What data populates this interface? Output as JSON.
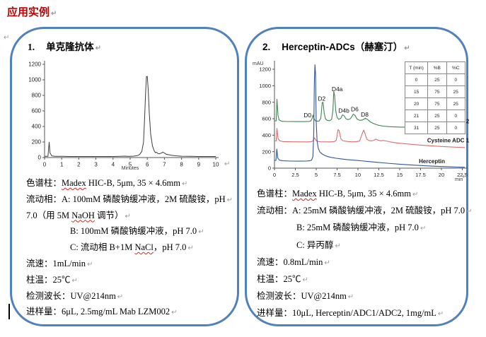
{
  "page": {
    "title": "应用实例",
    "paragraph_mark": "↵",
    "stray_mark": ".,"
  },
  "panel1": {
    "number": "1.",
    "heading": "单克隆抗体",
    "conditions": [
      {
        "indent": 0,
        "parts": [
          {
            "text": "色谱柱："
          },
          {
            "text": "Madex",
            "wavy": true
          },
          {
            "text": " HIC-B, 5μm, 35 × 4.6mm"
          }
        ]
      },
      {
        "indent": 0,
        "parts": [
          {
            "text": "流动相：A: 100mM 磷酸钠缓冲液，2M 硫酸铵，pH"
          }
        ]
      },
      {
        "indent": 0,
        "parts": [
          {
            "text": "7.0（用 5M "
          },
          {
            "text": "NaOH",
            "wavy": true
          },
          {
            "text": " 调节）"
          }
        ]
      },
      {
        "indent": 62,
        "parts": [
          {
            "text": "B: 100mM 磷酸钠缓冲液，pH 7.0"
          }
        ]
      },
      {
        "indent": 62,
        "parts": [
          {
            "text": "C: 流动相 B+1M "
          },
          {
            "text": "NaCl",
            "wavy": true
          },
          {
            "text": "，pH 7.0"
          }
        ]
      },
      {
        "indent": 0,
        "parts": [
          {
            "text": "流速：1mL/min"
          }
        ]
      },
      {
        "indent": 0,
        "parts": [
          {
            "text": "柱温：25℃"
          }
        ]
      },
      {
        "indent": 0,
        "parts": [
          {
            "text": "检测波长：UV@214nm"
          }
        ]
      },
      {
        "indent": 0,
        "parts": [
          {
            "text": "进样量：6μL, 2.5mg/mL Mab LZM002"
          }
        ]
      }
    ]
  },
  "panel2": {
    "number": "2.",
    "heading": "Herceptin-ADCs（赫塞汀）",
    "conditions": [
      {
        "indent": 0,
        "parts": [
          {
            "text": "色谱柱："
          },
          {
            "text": "Madex",
            "wavy": true
          },
          {
            "text": " HIC-B, 5μm, 35 × 4.6mm"
          }
        ]
      },
      {
        "indent": 0,
        "parts": [
          {
            "text": "流动相：A: 25mM 磷酸钠缓冲液，2M 硫酸铵，pH 7.0"
          }
        ]
      },
      {
        "indent": 56,
        "parts": [
          {
            "text": "B: 25mM 磷酸钠缓冲液，pH 7.0"
          }
        ]
      },
      {
        "indent": 56,
        "parts": [
          {
            "text": "C: 异丙醇"
          }
        ]
      },
      {
        "indent": 0,
        "parts": [
          {
            "text": "流速：0.8mL/min"
          }
        ]
      },
      {
        "indent": 0,
        "parts": [
          {
            "text": "柱温：25℃"
          }
        ]
      },
      {
        "indent": 0,
        "parts": [
          {
            "text": "检测波长：UV@214nm"
          }
        ]
      },
      {
        "indent": 0,
        "parts": [
          {
            "text": "进样量：10μL, Herceptin/ADC1/ADC2, 1mg/mL"
          }
        ]
      }
    ]
  },
  "chart_data": [
    {
      "type": "line",
      "name": "mab-chromatogram",
      "title": "",
      "xlabel": "Minutes",
      "ylabel": "",
      "xlim": [
        0,
        10
      ],
      "ylim": [
        0,
        1200
      ],
      "xticks": [
        0,
        1,
        2,
        3,
        4,
        5,
        6,
        7,
        8,
        9,
        10
      ],
      "yticks": [
        0,
        200,
        400,
        600,
        800,
        1000,
        1200
      ],
      "series": [
        {
          "name": "Mab LZM002",
          "color": "#3d3d3d",
          "points": [
            [
              0,
              16
            ],
            [
              0.2,
              16
            ],
            [
              0.27,
              198
            ],
            [
              0.32,
              60
            ],
            [
              0.42,
              22
            ],
            [
              0.6,
              16
            ],
            [
              1,
              15
            ],
            [
              1.5,
              14
            ],
            [
              2,
              14
            ],
            [
              2.5,
              14
            ],
            [
              3,
              14
            ],
            [
              3.5,
              14
            ],
            [
              4,
              14
            ],
            [
              4.4,
              15
            ],
            [
              4.72,
              18
            ],
            [
              4.78,
              15
            ],
            [
              5,
              16
            ],
            [
              5.2,
              18
            ],
            [
              5.4,
              24
            ],
            [
              5.55,
              38
            ],
            [
              5.68,
              80
            ],
            [
              5.78,
              200
            ],
            [
              5.84,
              480
            ],
            [
              5.9,
              830
            ],
            [
              5.95,
              1040
            ],
            [
              6.0,
              1045
            ],
            [
              6.05,
              890
            ],
            [
              6.12,
              560
            ],
            [
              6.2,
              300
            ],
            [
              6.3,
              150
            ],
            [
              6.4,
              88
            ],
            [
              6.48,
              62
            ],
            [
              6.55,
              68
            ],
            [
              6.62,
              52
            ],
            [
              6.72,
              48
            ],
            [
              6.82,
              58
            ],
            [
              6.92,
              68
            ],
            [
              7.0,
              58
            ],
            [
              7.1,
              44
            ],
            [
              7.25,
              36
            ],
            [
              7.45,
              28
            ],
            [
              7.7,
              22
            ],
            [
              8,
              17
            ],
            [
              8.5,
              15
            ],
            [
              9,
              14
            ],
            [
              9.5,
              14
            ],
            [
              10,
              14
            ]
          ]
        }
      ],
      "peak_labels": []
    },
    {
      "type": "line",
      "name": "herceptin-adc-chromatogram",
      "title": "",
      "xlabel": "min",
      "ylabel": "mAU",
      "xlim": [
        0,
        22.8
      ],
      "ylim": [
        0,
        1260
      ],
      "xticks": [
        0,
        2.5,
        5,
        7.5,
        10,
        12.5,
        15,
        17.5,
        20,
        22.5
      ],
      "yticks": [
        0,
        200,
        400,
        600,
        800,
        1000,
        1200
      ],
      "series": [
        {
          "name": "Cysteine ADC 2",
          "color": "#3f8653",
          "label_pos": [
            18.3,
            545
          ],
          "points": [
            [
              0,
              572
            ],
            [
              0.2,
              574
            ],
            [
              0.3,
              835
            ],
            [
              0.42,
              640
            ],
            [
              0.55,
              585
            ],
            [
              0.9,
              568
            ],
            [
              1.5,
              566
            ],
            [
              2.5,
              565
            ],
            [
              3.5,
              565
            ],
            [
              4.1,
              566
            ],
            [
              4.35,
              572
            ],
            [
              4.5,
              600
            ],
            [
              4.62,
              645
            ],
            [
              4.75,
              600
            ],
            [
              4.9,
              575
            ],
            [
              5.1,
              570
            ],
            [
              5.35,
              572
            ],
            [
              5.55,
              605
            ],
            [
              5.72,
              795
            ],
            [
              5.82,
              800
            ],
            [
              5.95,
              670
            ],
            [
              6.1,
              600
            ],
            [
              6.3,
              580
            ],
            [
              6.6,
              575
            ],
            [
              6.85,
              592
            ],
            [
              7.0,
              700
            ],
            [
              7.1,
              928
            ],
            [
              7.2,
              890
            ],
            [
              7.35,
              690
            ],
            [
              7.5,
              615
            ],
            [
              7.7,
              592
            ],
            [
              7.95,
              605
            ],
            [
              8.15,
              648
            ],
            [
              8.35,
              635
            ],
            [
              8.55,
              600
            ],
            [
              8.8,
              588
            ],
            [
              9.1,
              600
            ],
            [
              9.45,
              655
            ],
            [
              9.65,
              640
            ],
            [
              9.9,
              595
            ],
            [
              10.2,
              580
            ],
            [
              10.55,
              585
            ],
            [
              10.9,
              605
            ],
            [
              11.15,
              590
            ],
            [
              11.5,
              560
            ],
            [
              11.9,
              540
            ],
            [
              12.4,
              522
            ],
            [
              13,
              510
            ],
            [
              13.8,
              503
            ],
            [
              14.8,
              499
            ],
            [
              16,
              496
            ],
            [
              17.5,
              494
            ],
            [
              19,
              493
            ],
            [
              20.5,
              492
            ],
            [
              22,
              491
            ],
            [
              22.8,
              490
            ]
          ]
        },
        {
          "name": "Cysteine ADC 1",
          "color": "#e06a6a",
          "label_pos": [
            18.3,
            312
          ],
          "points": [
            [
              0,
              328
            ],
            [
              0.2,
              330
            ],
            [
              0.3,
              482
            ],
            [
              0.42,
              362
            ],
            [
              0.6,
              333
            ],
            [
              1,
              322
            ],
            [
              2,
              320
            ],
            [
              3,
              319
            ],
            [
              4,
              319
            ],
            [
              4.4,
              321
            ],
            [
              4.6,
              330
            ],
            [
              4.8,
              368
            ],
            [
              4.95,
              340
            ],
            [
              5.15,
              325
            ],
            [
              5.5,
              320
            ],
            [
              6,
              319
            ],
            [
              6.6,
              319
            ],
            [
              7.1,
              321
            ],
            [
              7.4,
              335
            ],
            [
              7.62,
              468
            ],
            [
              7.75,
              455
            ],
            [
              7.95,
              360
            ],
            [
              8.15,
              334
            ],
            [
              8.4,
              328
            ],
            [
              8.8,
              323
            ],
            [
              9.2,
              321
            ],
            [
              9.7,
              320
            ],
            [
              10.2,
              328
            ],
            [
              10.55,
              430
            ],
            [
              10.7,
              462
            ],
            [
              10.85,
              420
            ],
            [
              11.05,
              352
            ],
            [
              11.3,
              336
            ],
            [
              11.6,
              330
            ],
            [
              11.9,
              338
            ],
            [
              12.15,
              352
            ],
            [
              12.4,
              340
            ],
            [
              12.7,
              331
            ],
            [
              13.0,
              336
            ],
            [
              13.35,
              330
            ],
            [
              13.7,
              322
            ],
            [
              14.2,
              312
            ],
            [
              15,
              302
            ],
            [
              16,
              293
            ],
            [
              17,
              284
            ],
            [
              18,
              276
            ],
            [
              19,
              269
            ],
            [
              20,
              263
            ],
            [
              21,
              258
            ],
            [
              22,
              253
            ],
            [
              22.8,
              250
            ]
          ]
        },
        {
          "name": "Herceptin",
          "color": "#2f5597",
          "label_pos": [
            17.3,
            62
          ],
          "points": [
            [
              0,
              93
            ],
            [
              0.18,
              94
            ],
            [
              0.28,
              232
            ],
            [
              0.4,
              122
            ],
            [
              0.6,
              97
            ],
            [
              1,
              89
            ],
            [
              2,
              86
            ],
            [
              3,
              85
            ],
            [
              3.8,
              86
            ],
            [
              4.2,
              89
            ],
            [
              4.45,
              98
            ],
            [
              4.6,
              140
            ],
            [
              4.7,
              420
            ],
            [
              4.78,
              1050
            ],
            [
              4.85,
              1255
            ],
            [
              4.92,
              1150
            ],
            [
              5.0,
              560
            ],
            [
              5.1,
              330
            ],
            [
              5.25,
              240
            ],
            [
              5.45,
              195
            ],
            [
              5.7,
              172
            ],
            [
              6,
              155
            ],
            [
              6.4,
              140
            ],
            [
              6.9,
              128
            ],
            [
              7.4,
              120
            ],
            [
              8,
              112
            ],
            [
              8.7,
              104
            ],
            [
              9.5,
              97
            ],
            [
              10.3,
              90
            ],
            [
              11.2,
              81
            ],
            [
              12.1,
              72
            ],
            [
              13,
              64
            ],
            [
              14,
              56
            ],
            [
              15,
              48
            ],
            [
              16,
              41
            ],
            [
              17,
              35
            ],
            [
              18,
              29
            ],
            [
              19,
              24
            ],
            [
              20,
              20
            ],
            [
              21,
              16
            ],
            [
              22,
              13
            ],
            [
              22.8,
              11
            ]
          ]
        }
      ],
      "peak_labels": [
        {
          "text": "D0",
          "x": 3.5,
          "y": 618
        },
        {
          "text": "D2",
          "x": 5.2,
          "y": 818
        },
        {
          "text": "D4a",
          "x": 6.85,
          "y": 935
        },
        {
          "text": "D4b",
          "x": 7.65,
          "y": 672
        },
        {
          "text": "D6",
          "x": 9.15,
          "y": 688
        },
        {
          "text": "D8",
          "x": 10.35,
          "y": 625
        }
      ],
      "gradient_table": {
        "headers": [
          "T (min)",
          "%B",
          "%C"
        ],
        "rows": [
          [
            "0",
            "25",
            "0"
          ],
          [
            "15",
            "75",
            "25"
          ],
          [
            "20",
            "75",
            "25"
          ],
          [
            "21",
            "25",
            "0"
          ],
          [
            "31",
            "25",
            "0"
          ]
        ]
      }
    }
  ]
}
